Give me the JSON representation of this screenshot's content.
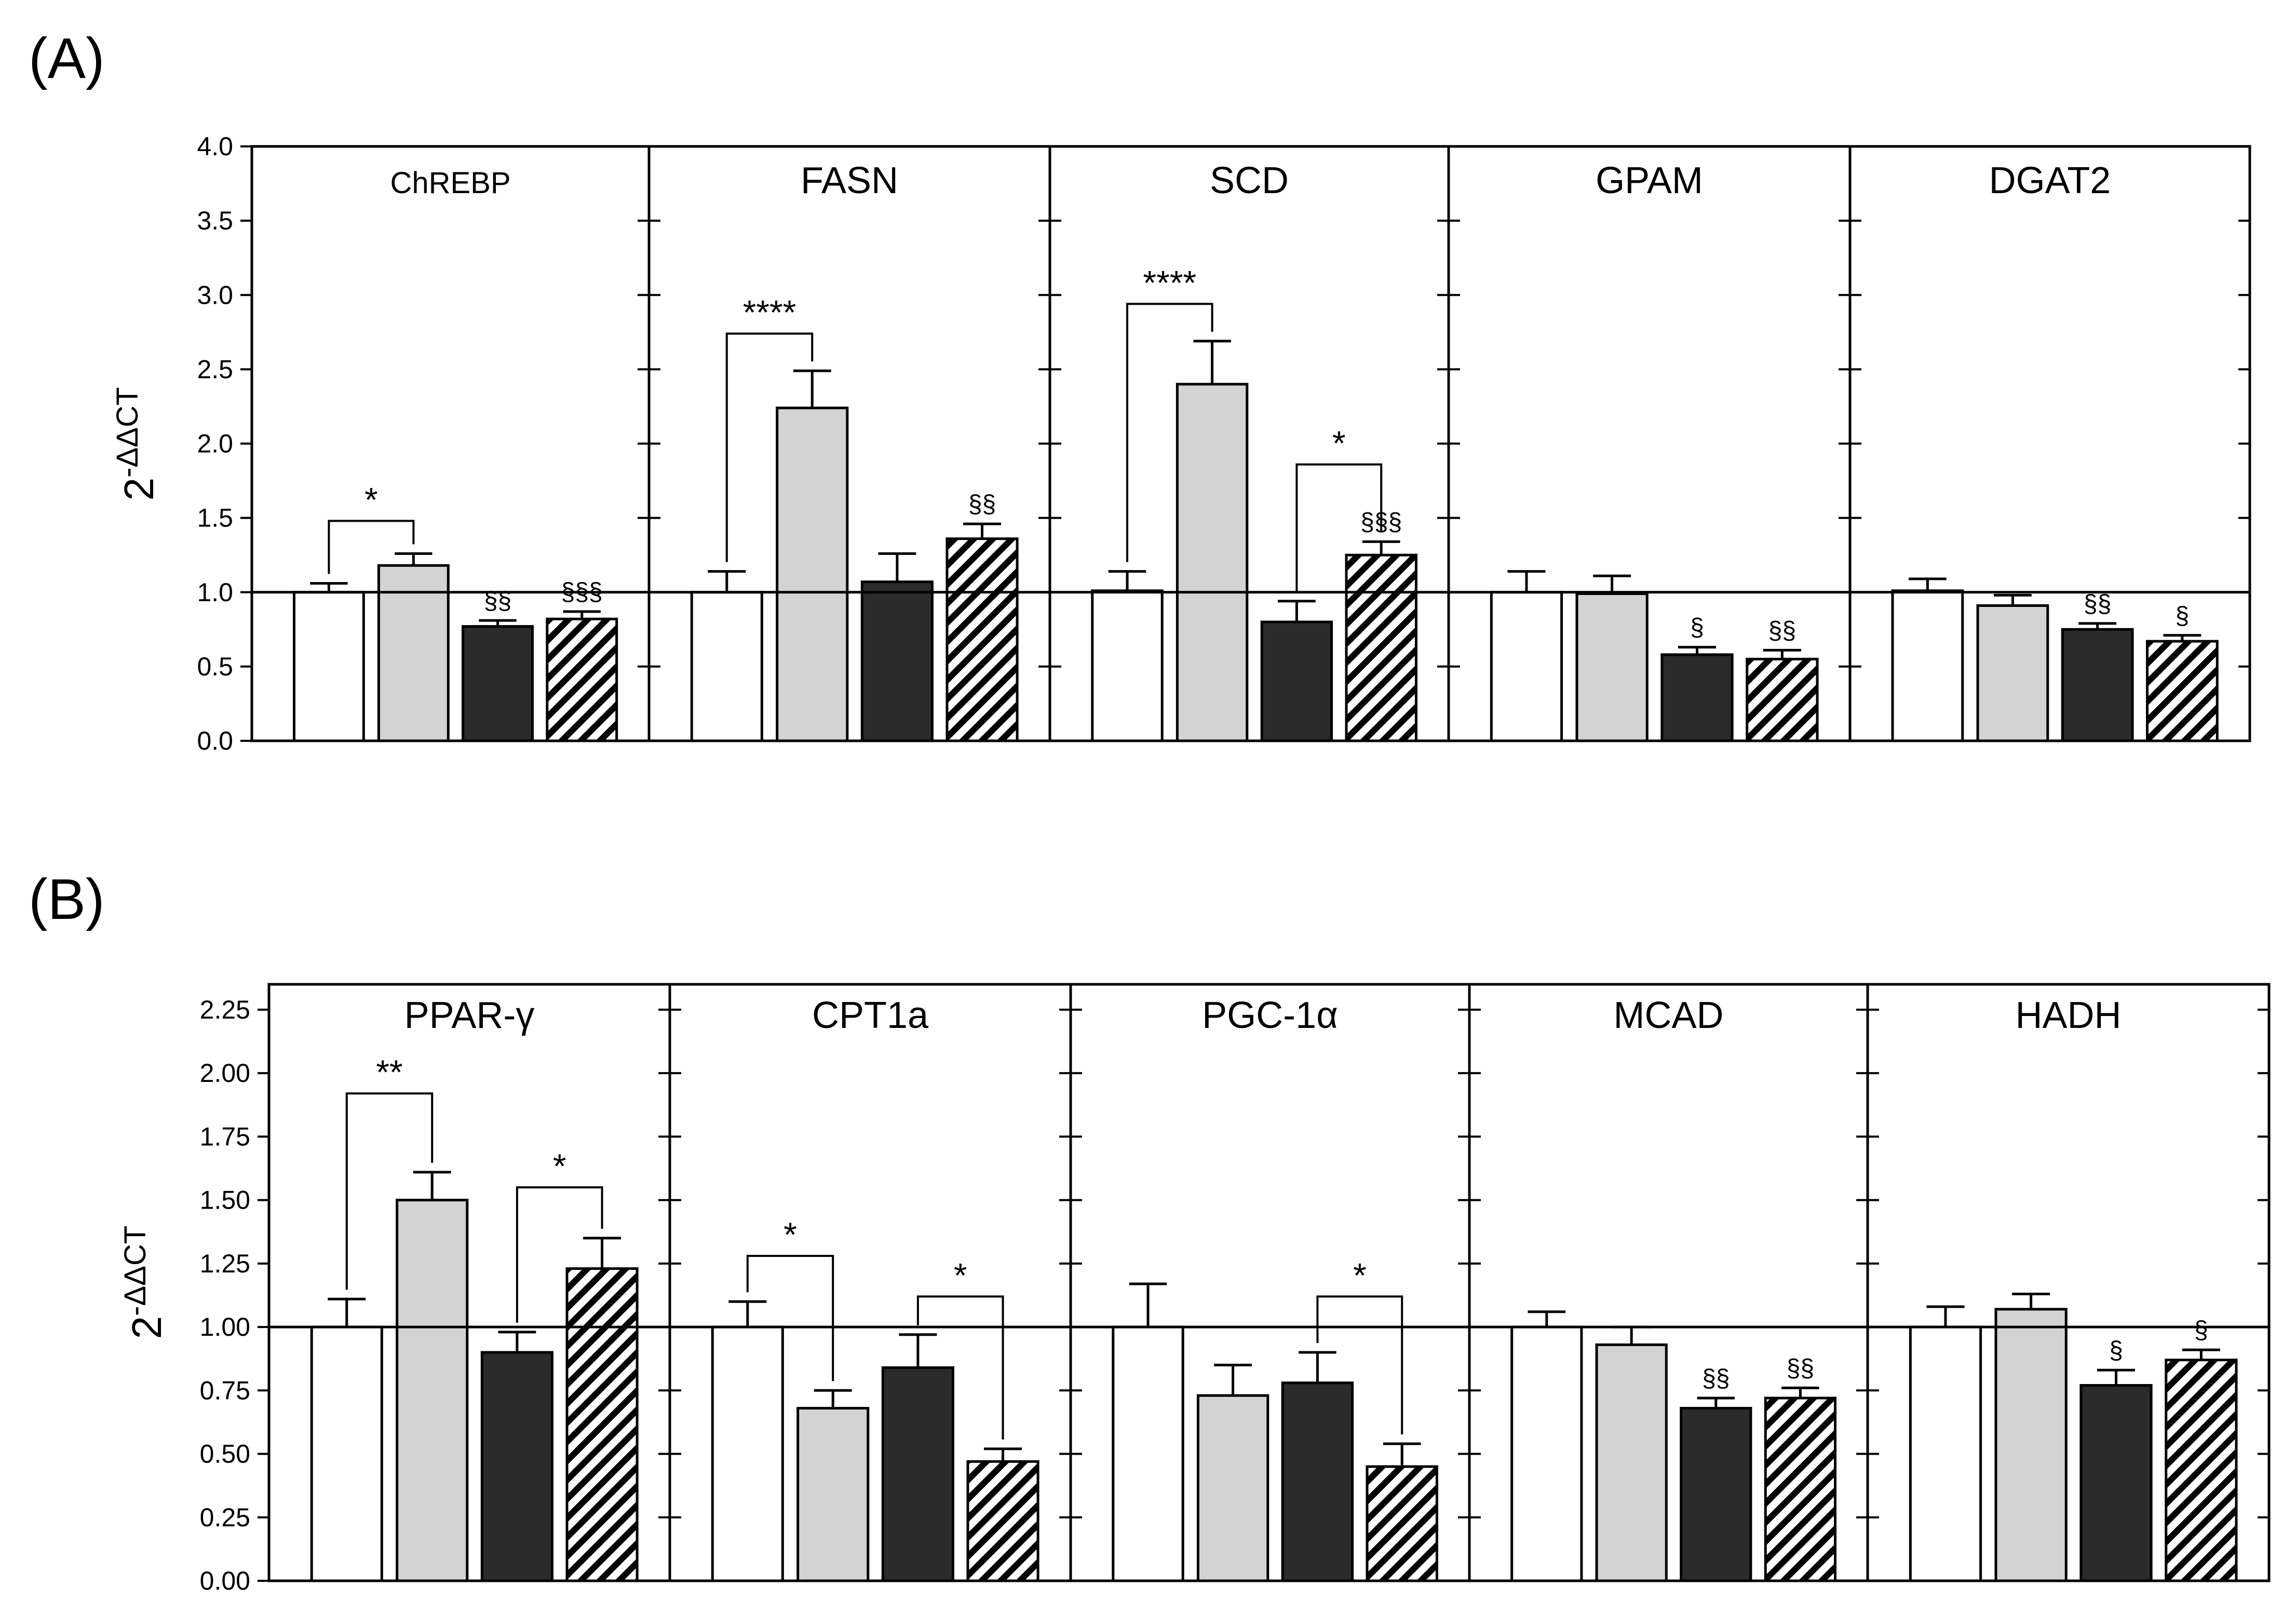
{
  "figure": {
    "panel_labels": [
      "(A)",
      "(B)"
    ]
  },
  "colors": {
    "control": "#ffffff",
    "group2": "#d3d3d3",
    "group3": "#2b2b2b",
    "group4_hatch": "#000000",
    "axis": "#000000"
  },
  "chart_data": [
    {
      "type": "bar",
      "panel": "(A)",
      "ylabel": "2-ΔΔCT",
      "ylim": [
        0,
        4.0
      ],
      "yticks": [
        "0.0",
        "0.5",
        "1.0",
        "1.5",
        "2.0",
        "2.5",
        "3.0",
        "3.5",
        "4.0"
      ],
      "reference_line": 1.0,
      "grid": false,
      "subplots": [
        {
          "title": "ChREBP",
          "values": [
            1.0,
            1.18,
            0.77,
            0.82
          ],
          "errors": [
            0.06,
            0.08,
            0.04,
            0.05
          ],
          "marks": [
            "",
            "",
            "§§",
            "§§§"
          ],
          "comparisons": [
            {
              "from": 0,
              "to": 1,
              "label": "*",
              "level": 1.48
            }
          ]
        },
        {
          "title": "FASN",
          "values": [
            1.0,
            2.24,
            1.07,
            1.36
          ],
          "errors": [
            0.14,
            0.25,
            0.19,
            0.1
          ],
          "marks": [
            "",
            "",
            "",
            "§§"
          ],
          "comparisons": [
            {
              "from": 0,
              "to": 1,
              "label": "****",
              "level": 2.74
            }
          ]
        },
        {
          "title": "SCD",
          "values": [
            1.01,
            2.4,
            0.8,
            1.25
          ],
          "errors": [
            0.13,
            0.29,
            0.14,
            0.09
          ],
          "marks": [
            "",
            "",
            "",
            "§§§"
          ],
          "comparisons": [
            {
              "from": 0,
              "to": 1,
              "label": "****",
              "level": 2.94
            },
            {
              "from": 2,
              "to": 3,
              "label": "*",
              "level": 1.86
            }
          ]
        },
        {
          "title": "GPAM",
          "values": [
            1.0,
            0.99,
            0.58,
            0.55
          ],
          "errors": [
            0.14,
            0.12,
            0.05,
            0.06
          ],
          "marks": [
            "",
            "",
            "§",
            "§§"
          ],
          "comparisons": []
        },
        {
          "title": "DGAT2",
          "values": [
            1.01,
            0.91,
            0.75,
            0.67
          ],
          "errors": [
            0.08,
            0.07,
            0.04,
            0.04
          ],
          "marks": [
            "",
            "",
            "§§",
            "§"
          ],
          "comparisons": []
        }
      ]
    },
    {
      "type": "bar",
      "panel": "(B)",
      "ylabel": "2-ΔΔCT",
      "ylim": [
        0,
        2.35
      ],
      "yticks": [
        "0.00",
        "0.25",
        "0.50",
        "0.75",
        "1.00",
        "1.25",
        "1.50",
        "1.75",
        "2.00",
        "2.25"
      ],
      "reference_line": 1.0,
      "grid": false,
      "subplots": [
        {
          "title": "PPAR-γ",
          "values": [
            1.0,
            1.5,
            0.9,
            1.23
          ],
          "errors": [
            0.11,
            0.11,
            0.08,
            0.12
          ],
          "marks": [
            "",
            "",
            "",
            ""
          ],
          "comparisons": [
            {
              "from": 0,
              "to": 1,
              "label": "**",
              "level": 1.92
            },
            {
              "from": 2,
              "to": 3,
              "label": "*",
              "level": 1.55
            }
          ]
        },
        {
          "title": "CPT1a",
          "values": [
            1.0,
            0.68,
            0.84,
            0.47
          ],
          "errors": [
            0.1,
            0.07,
            0.13,
            0.05
          ],
          "marks": [
            "",
            "",
            "",
            ""
          ],
          "comparisons": [
            {
              "from": 0,
              "to": 1,
              "label": "*",
              "level": 1.28
            },
            {
              "from": 2,
              "to": 3,
              "label": "*",
              "level": 1.12
            }
          ]
        },
        {
          "title": "PGC-1α",
          "values": [
            1.0,
            0.73,
            0.78,
            0.45
          ],
          "errors": [
            0.17,
            0.12,
            0.12,
            0.09
          ],
          "marks": [
            "",
            "",
            "",
            ""
          ],
          "comparisons": [
            {
              "from": 2,
              "to": 3,
              "label": "*",
              "level": 1.12
            }
          ]
        },
        {
          "title": "MCAD",
          "values": [
            1.0,
            0.93,
            0.68,
            0.72
          ],
          "errors": [
            0.06,
            0.07,
            0.04,
            0.04
          ],
          "marks": [
            "",
            "",
            "§§",
            "§§"
          ],
          "comparisons": []
        },
        {
          "title": "HADH",
          "values": [
            1.0,
            1.07,
            0.77,
            0.87
          ],
          "errors": [
            0.08,
            0.06,
            0.06,
            0.04
          ],
          "marks": [
            "",
            "",
            "§",
            "§"
          ],
          "comparisons": []
        }
      ]
    }
  ]
}
